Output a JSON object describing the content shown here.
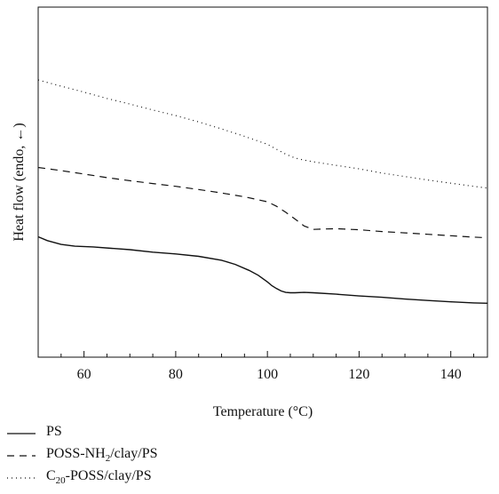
{
  "chart_data": {
    "type": "line",
    "xlabel": "Temperature (°C)",
    "ylabel": "Heat flow (endo, ←)",
    "xlim": [
      50,
      148
    ],
    "ylim": [
      0,
      10
    ],
    "x_ticks": [
      "60",
      "80",
      "100",
      "120",
      "140"
    ],
    "x_tick_values": [
      60,
      80,
      100,
      120,
      140
    ],
    "y_tick_labels_shown": false,
    "grid": false,
    "legend_position": "below",
    "series": [
      {
        "name": "PS",
        "label_main": "PS",
        "label_sub": "",
        "label_tail": "",
        "style": "solid",
        "x": [
          50,
          52,
          55,
          58,
          62,
          66,
          70,
          75,
          80,
          85,
          90,
          93,
          96,
          98,
          100,
          101,
          102,
          103,
          104,
          105,
          106,
          108,
          110,
          115,
          120,
          125,
          130,
          135,
          140,
          145,
          148
        ],
        "y": [
          3.44,
          3.33,
          3.22,
          3.17,
          3.15,
          3.11,
          3.07,
          3.0,
          2.95,
          2.88,
          2.77,
          2.65,
          2.48,
          2.34,
          2.15,
          2.04,
          1.96,
          1.89,
          1.85,
          1.84,
          1.84,
          1.85,
          1.84,
          1.8,
          1.75,
          1.71,
          1.66,
          1.62,
          1.58,
          1.55,
          1.54
        ]
      },
      {
        "name": "POSS-NH2/clay/PS",
        "label_main": "POSS-NH",
        "label_sub": "2",
        "label_tail": "/clay/PS",
        "style": "dashed",
        "x": [
          50,
          55,
          60,
          65,
          70,
          75,
          80,
          85,
          90,
          95,
          100,
          102,
          104,
          106,
          108,
          110,
          112,
          115,
          120,
          125,
          130,
          135,
          140,
          145,
          148
        ],
        "y": [
          5.42,
          5.33,
          5.23,
          5.13,
          5.04,
          4.96,
          4.88,
          4.79,
          4.69,
          4.58,
          4.44,
          4.31,
          4.14,
          3.95,
          3.75,
          3.65,
          3.66,
          3.67,
          3.64,
          3.59,
          3.55,
          3.51,
          3.47,
          3.43,
          3.41
        ]
      },
      {
        "name": "C20-POSS/clay/PS",
        "label_main": "C",
        "label_sub": "20",
        "label_tail": "-POSS/clay/PS",
        "style": "dotted",
        "x": [
          50,
          55,
          60,
          65,
          70,
          75,
          80,
          85,
          90,
          95,
          100,
          102,
          104,
          106,
          108,
          110,
          115,
          120,
          125,
          130,
          135,
          140,
          145,
          148
        ],
        "y": [
          7.92,
          7.74,
          7.57,
          7.39,
          7.23,
          7.06,
          6.9,
          6.72,
          6.52,
          6.31,
          6.08,
          5.94,
          5.8,
          5.69,
          5.63,
          5.58,
          5.48,
          5.38,
          5.26,
          5.16,
          5.06,
          4.97,
          4.88,
          4.83
        ]
      }
    ]
  }
}
